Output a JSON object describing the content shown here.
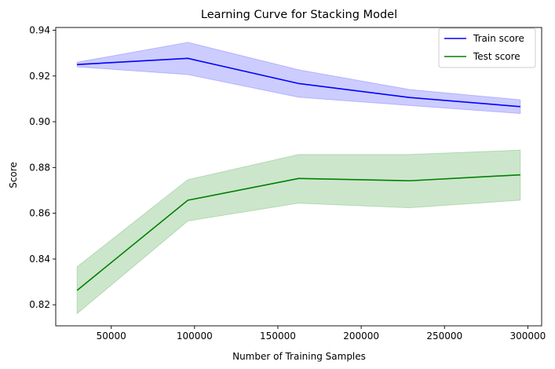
{
  "chart_data": {
    "type": "line",
    "title": "Learning Curve for Stacking Model",
    "xlabel": "Number of Training Samples",
    "ylabel": "Score",
    "xlim": [
      16700,
      308300
    ],
    "ylim": [
      0.8108,
      0.9412
    ],
    "xticks": [
      50000,
      100000,
      150000,
      200000,
      250000,
      300000
    ],
    "xtick_labels": [
      "50000",
      "100000",
      "150000",
      "200000",
      "250000",
      "300000"
    ],
    "yticks": [
      0.82,
      0.84,
      0.86,
      0.88,
      0.9,
      0.92,
      0.94
    ],
    "ytick_labels": [
      "0.82",
      "0.84",
      "0.86",
      "0.88",
      "0.90",
      "0.92",
      "0.94"
    ],
    "x": [
      29500,
      96000,
      162500,
      229000,
      295500
    ],
    "series": [
      {
        "name": "Train score",
        "color": "#0000ff",
        "band_color": "#0000ff",
        "values": [
          0.925,
          0.9277,
          0.9167,
          0.9106,
          0.9066
        ],
        "upper": [
          0.926,
          0.9347,
          0.9227,
          0.9141,
          0.9096
        ],
        "lower": [
          0.924,
          0.9206,
          0.9107,
          0.9071,
          0.9036
        ]
      },
      {
        "name": "Test score",
        "color": "#008000",
        "band_color": "#008000",
        "values": [
          0.8263,
          0.8657,
          0.8752,
          0.8742,
          0.8768
        ],
        "upper": [
          0.8366,
          0.8747,
          0.8857,
          0.8857,
          0.8876
        ],
        "lower": [
          0.8161,
          0.8566,
          0.8644,
          0.8624,
          0.8657
        ]
      }
    ],
    "legend_position": "top-right",
    "grid": false
  }
}
